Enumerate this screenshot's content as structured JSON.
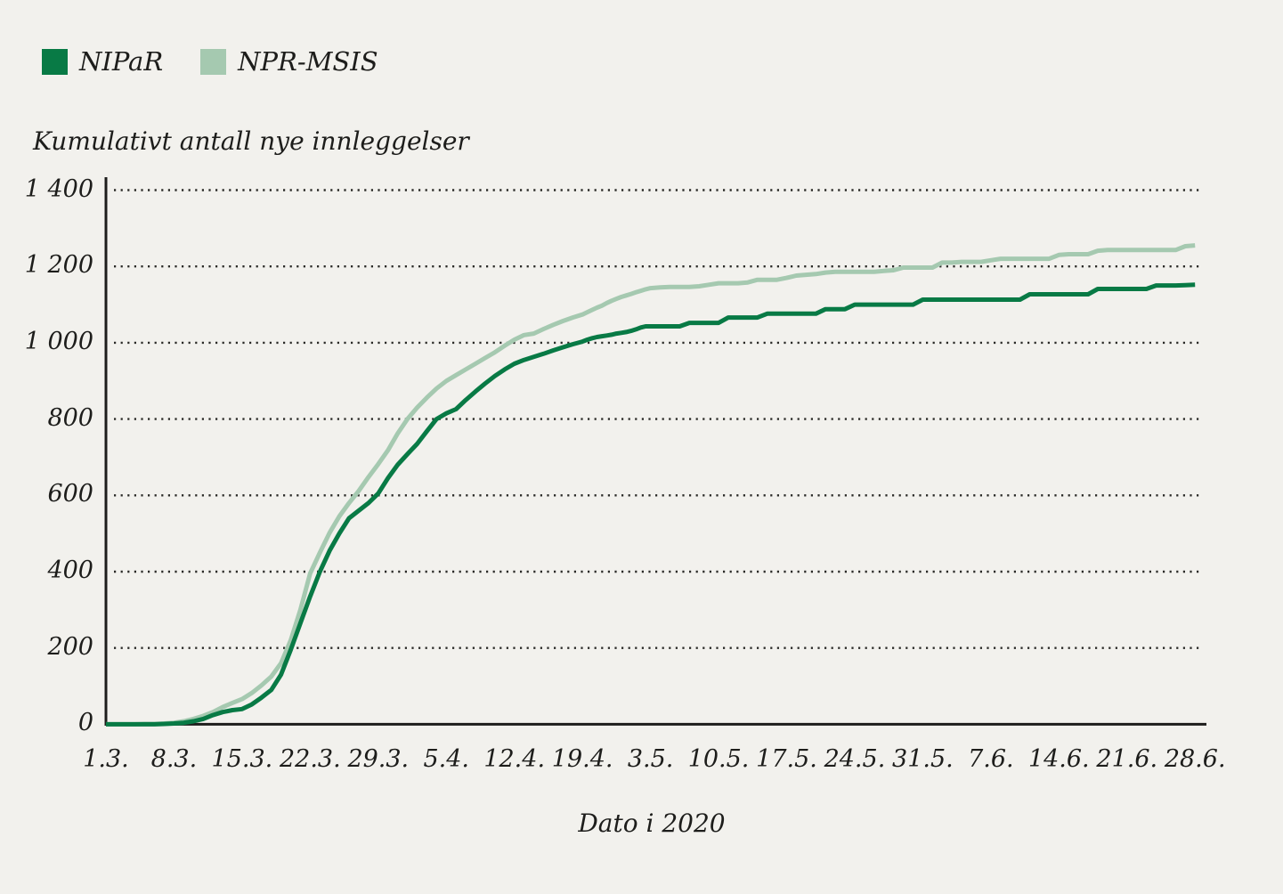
{
  "legend": {
    "items": [
      {
        "label": "NIPaR",
        "color": "#087a45"
      },
      {
        "label": "NPR-MSIS",
        "color": "#a5c9b0"
      }
    ]
  },
  "chart_data": {
    "type": "line",
    "title": "Kumulativt antall nye innleggelser",
    "xlabel": "Dato i 2020",
    "ylabel": "Kumulativt antall nye innleggelser",
    "ylim": [
      0,
      1400
    ],
    "y_ticks": [
      0,
      200,
      400,
      600,
      800,
      1000,
      1200,
      1400
    ],
    "grid": "dotted-horizontal",
    "legend_position": "top-left",
    "x_unit": "daily, 1.3.2020 - 28.6.2020",
    "x_tick_labels": [
      "1.3.",
      "8.3.",
      "15.3.",
      "22.3.",
      "29.3.",
      "5.4.",
      "12.4.",
      "19.4.",
      "3.5.",
      "10.5.",
      "17.5.",
      "24.5.",
      "31.5.",
      "7.6.",
      "14.6.",
      "21.6.",
      "28.6."
    ],
    "x_tick_day_index": [
      0,
      7,
      14,
      21,
      28,
      35,
      42,
      49,
      63,
      70,
      77,
      84,
      91,
      98,
      105,
      112,
      119
    ],
    "series": [
      {
        "name": "NIPaR",
        "color": "#087a45",
        "values": [
          0,
          0,
          0,
          0,
          0,
          0,
          1,
          2,
          4,
          8,
          14,
          24,
          32,
          37,
          40,
          52,
          70,
          90,
          130,
          195,
          265,
          335,
          400,
          455,
          500,
          540,
          560,
          580,
          605,
          645,
          680,
          708,
          735,
          768,
          800,
          815,
          826,
          850,
          872,
          893,
          913,
          930,
          945,
          955,
          963,
          971,
          980,
          988,
          996,
          1003,
          1008,
          1012,
          1015,
          1017,
          1019,
          1021,
          1024,
          1026,
          1028,
          1031,
          1035,
          1040,
          1043,
          1043,
          1043,
          1043,
          1043,
          1052,
          1052,
          1052,
          1052,
          1066,
          1066,
          1066,
          1066,
          1076,
          1076,
          1076,
          1076,
          1076,
          1076,
          1088,
          1088,
          1088,
          1100,
          1100,
          1100,
          1100,
          1100,
          1100,
          1100,
          1113,
          1113,
          1113,
          1113,
          1113,
          1113,
          1113,
          1113,
          1113,
          1113,
          1113,
          1127,
          1127,
          1127,
          1127,
          1127,
          1127,
          1127,
          1141,
          1141,
          1141,
          1141,
          1141,
          1141,
          1150,
          1150,
          1150,
          1151,
          1152
        ]
      },
      {
        "name": "NPR-MSIS",
        "color": "#a5c9b0",
        "values": [
          0,
          0,
          0,
          0,
          1,
          1,
          2,
          4,
          8,
          14,
          22,
          32,
          45,
          56,
          66,
          82,
          102,
          125,
          160,
          220,
          300,
          395,
          450,
          502,
          545,
          580,
          612,
          648,
          682,
          718,
          762,
          800,
          830,
          856,
          880,
          900,
          915,
          930,
          945,
          960,
          975,
          992,
          1008,
          1020,
          1024,
          1036,
          1047,
          1057,
          1066,
          1074,
          1080,
          1086,
          1092,
          1097,
          1104,
          1110,
          1115,
          1120,
          1124,
          1128,
          1132,
          1136,
          1140,
          1143,
          1145,
          1146,
          1146,
          1146,
          1148,
          1152,
          1156,
          1156,
          1156,
          1158,
          1165,
          1165,
          1165,
          1170,
          1176,
          1178,
          1180,
          1184,
          1186,
          1186,
          1186,
          1186,
          1186,
          1188,
          1190,
          1197,
          1197,
          1197,
          1197,
          1210,
          1210,
          1212,
          1212,
          1212,
          1216,
          1220,
          1220,
          1220,
          1220,
          1220,
          1220,
          1230,
          1232,
          1232,
          1232,
          1241,
          1243,
          1243,
          1243,
          1243,
          1243,
          1243,
          1243,
          1243,
          1253,
          1255
        ]
      }
    ]
  }
}
